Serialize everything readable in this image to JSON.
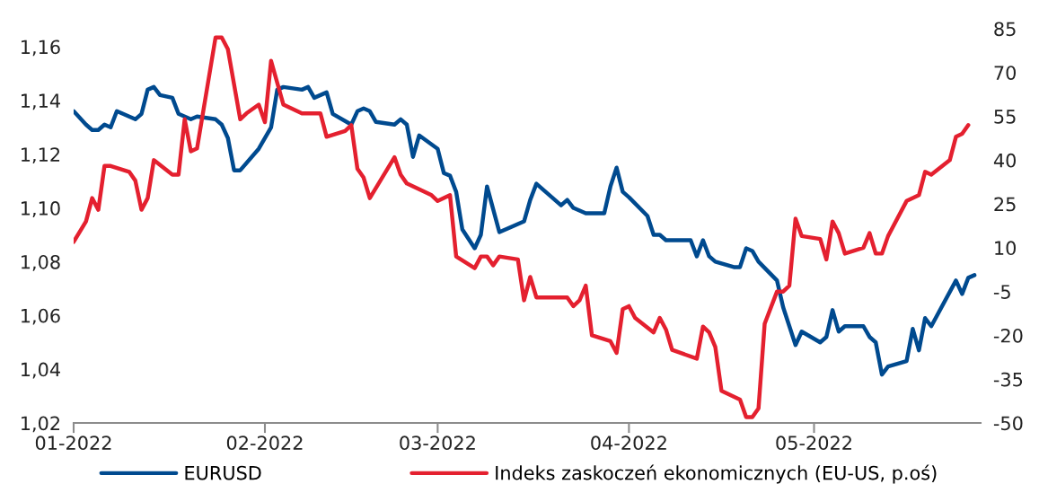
{
  "chart_data": {
    "type": "line",
    "xlim": [
      "2022-01-01",
      "2022-05-28"
    ],
    "xticks": [
      {
        "value": "2022-01-01",
        "label": "01-2022"
      },
      {
        "value": "2022-02-01",
        "label": "02-2022"
      },
      {
        "value": "2022-03-01",
        "label": "03-2022"
      },
      {
        "value": "2022-04-01",
        "label": "04-2022"
      },
      {
        "value": "2022-05-01",
        "label": "05-2022"
      }
    ],
    "ylim": [
      1.02,
      1.16
    ],
    "yticks": [
      {
        "value": 1.02,
        "label": "1,02"
      },
      {
        "value": 1.04,
        "label": "1,04"
      },
      {
        "value": 1.06,
        "label": "1,06"
      },
      {
        "value": 1.08,
        "label": "1,08"
      },
      {
        "value": 1.1,
        "label": "1,10"
      },
      {
        "value": 1.12,
        "label": "1,12"
      },
      {
        "value": 1.14,
        "label": "1,14"
      },
      {
        "value": 1.16,
        "label": "1,16"
      }
    ],
    "y2lim": [
      -50,
      85
    ],
    "y2ticks": [
      -50,
      -35,
      -20,
      -5,
      10,
      25,
      40,
      55,
      70,
      85
    ],
    "grid": false,
    "legend": "bottom",
    "marker": "none",
    "line_style": "solid",
    "series": [
      {
        "name": "EURUSD",
        "color": "#004a8f",
        "x": [
          "2022-01-01",
          "2022-01-03",
          "2022-01-04",
          "2022-01-05",
          "2022-01-06",
          "2022-01-07",
          "2022-01-08",
          "2022-01-11",
          "2022-01-12",
          "2022-01-13",
          "2022-01-14",
          "2022-01-15",
          "2022-01-17",
          "2022-01-18",
          "2022-01-19",
          "2022-01-20",
          "2022-01-21",
          "2022-01-24",
          "2022-01-25",
          "2022-01-26",
          "2022-01-27",
          "2022-01-28",
          "2022-01-31",
          "2022-02-02",
          "2022-02-03",
          "2022-02-04",
          "2022-02-07",
          "2022-02-08",
          "2022-02-09",
          "2022-02-11",
          "2022-02-12",
          "2022-02-15",
          "2022-02-16",
          "2022-02-17",
          "2022-02-18",
          "2022-02-19",
          "2022-02-22",
          "2022-02-23",
          "2022-02-24",
          "2022-02-25",
          "2022-02-26",
          "2022-03-01",
          "2022-03-02",
          "2022-03-03",
          "2022-03-04",
          "2022-03-05",
          "2022-03-07",
          "2022-03-08",
          "2022-03-09",
          "2022-03-11",
          "2022-03-15",
          "2022-03-16",
          "2022-03-17",
          "2022-03-19",
          "2022-03-21",
          "2022-03-22",
          "2022-03-23",
          "2022-03-24",
          "2022-03-25",
          "2022-03-28",
          "2022-03-29",
          "2022-03-30",
          "2022-03-31",
          "2022-04-01",
          "2022-04-04",
          "2022-04-05",
          "2022-04-06",
          "2022-04-07",
          "2022-04-11",
          "2022-04-12",
          "2022-04-13",
          "2022-04-14",
          "2022-04-15",
          "2022-04-18",
          "2022-04-19",
          "2022-04-20",
          "2022-04-21",
          "2022-04-22",
          "2022-04-25",
          "2022-04-26",
          "2022-04-27",
          "2022-04-28",
          "2022-04-29",
          "2022-05-02",
          "2022-05-03",
          "2022-05-04",
          "2022-05-05",
          "2022-05-06",
          "2022-05-09",
          "2022-05-10",
          "2022-05-11",
          "2022-05-12",
          "2022-05-13",
          "2022-05-16",
          "2022-05-17",
          "2022-05-18",
          "2022-05-19",
          "2022-05-20",
          "2022-05-24",
          "2022-05-25",
          "2022-05-26",
          "2022-05-27"
        ],
        "values": [
          1.136,
          1.131,
          1.129,
          1.129,
          1.131,
          1.13,
          1.136,
          1.133,
          1.135,
          1.144,
          1.145,
          1.142,
          1.141,
          1.135,
          1.134,
          1.133,
          1.134,
          1.133,
          1.131,
          1.126,
          1.114,
          1.114,
          1.122,
          1.13,
          1.144,
          1.145,
          1.144,
          1.145,
          1.141,
          1.143,
          1.135,
          1.131,
          1.136,
          1.137,
          1.136,
          1.132,
          1.131,
          1.133,
          1.131,
          1.119,
          1.127,
          1.122,
          1.113,
          1.112,
          1.106,
          1.092,
          1.085,
          1.09,
          1.108,
          1.091,
          1.095,
          1.103,
          1.109,
          1.105,
          1.101,
          1.103,
          1.1,
          1.099,
          1.098,
          1.098,
          1.108,
          1.115,
          1.106,
          1.104,
          1.097,
          1.09,
          1.09,
          1.088,
          1.088,
          1.082,
          1.088,
          1.082,
          1.08,
          1.078,
          1.078,
          1.085,
          1.084,
          1.08,
          1.073,
          1.063,
          1.056,
          1.049,
          1.054,
          1.05,
          1.052,
          1.062,
          1.054,
          1.056,
          1.056,
          1.052,
          1.05,
          1.038,
          1.041,
          1.043,
          1.055,
          1.047,
          1.059,
          1.056,
          1.073,
          1.068,
          1.074,
          1.075
        ]
      },
      {
        "name": "Indeks zaskoczeń ekonomicznych (EU-US, p.oś)",
        "color": "#e4202f",
        "axis": "y2",
        "x": [
          "2022-01-01",
          "2022-01-03",
          "2022-01-04",
          "2022-01-05",
          "2022-01-06",
          "2022-01-07",
          "2022-01-10",
          "2022-01-11",
          "2022-01-12",
          "2022-01-13",
          "2022-01-14",
          "2022-01-17",
          "2022-01-18",
          "2022-01-19",
          "2022-01-20",
          "2022-01-21",
          "2022-01-24",
          "2022-01-25",
          "2022-01-26",
          "2022-01-28",
          "2022-01-29",
          "2022-01-31",
          "2022-02-01",
          "2022-02-02",
          "2022-02-04",
          "2022-02-07",
          "2022-02-08",
          "2022-02-10",
          "2022-02-11",
          "2022-02-14",
          "2022-02-15",
          "2022-02-16",
          "2022-02-17",
          "2022-02-18",
          "2022-02-22",
          "2022-02-23",
          "2022-02-24",
          "2022-02-25",
          "2022-02-28",
          "2022-03-01",
          "2022-03-02",
          "2022-03-03",
          "2022-03-04",
          "2022-03-07",
          "2022-03-08",
          "2022-03-09",
          "2022-03-10",
          "2022-03-11",
          "2022-03-14",
          "2022-03-15",
          "2022-03-16",
          "2022-03-17",
          "2022-03-18",
          "2022-03-21",
          "2022-03-22",
          "2022-03-23",
          "2022-03-24",
          "2022-03-25",
          "2022-03-26",
          "2022-03-29",
          "2022-03-30",
          "2022-03-31",
          "2022-04-01",
          "2022-04-02",
          "2022-04-05",
          "2022-04-06",
          "2022-04-07",
          "2022-04-08",
          "2022-04-12",
          "2022-04-13",
          "2022-04-14",
          "2022-04-15",
          "2022-04-16",
          "2022-04-18",
          "2022-04-19",
          "2022-04-20",
          "2022-04-21",
          "2022-04-22",
          "2022-04-23",
          "2022-04-25",
          "2022-04-26",
          "2022-04-27",
          "2022-04-28",
          "2022-04-29",
          "2022-05-02",
          "2022-05-03",
          "2022-05-04",
          "2022-05-05",
          "2022-05-06",
          "2022-05-09",
          "2022-05-10",
          "2022-05-11",
          "2022-05-12",
          "2022-05-13",
          "2022-05-16",
          "2022-05-17",
          "2022-05-18",
          "2022-05-19",
          "2022-05-20",
          "2022-05-23",
          "2022-05-24",
          "2022-05-25",
          "2022-05-26"
        ],
        "values": [
          12,
          19,
          27,
          23,
          38,
          38,
          36,
          33,
          23,
          27,
          40,
          35,
          35,
          54,
          43,
          44,
          82,
          82,
          78,
          54,
          56,
          59,
          53,
          74,
          59,
          56,
          56,
          56,
          48,
          50,
          52,
          37,
          34,
          27,
          41,
          35,
          32,
          31,
          28,
          26,
          27,
          28,
          7,
          3,
          7,
          7,
          4,
          7,
          6,
          -8,
          0,
          -7,
          -7,
          -7,
          -7,
          -10,
          -8,
          -3,
          -20,
          -22,
          -26,
          -11,
          -10,
          -14,
          -19,
          -14,
          -18,
          -25,
          -28,
          -17,
          -19,
          -24,
          -39,
          -41,
          -42,
          -48,
          -48,
          -45,
          -16,
          -5,
          -5,
          -3,
          20,
          14,
          13,
          6,
          19,
          15,
          8,
          10,
          15,
          8,
          8,
          14,
          26,
          27,
          28,
          36,
          35,
          40,
          48,
          49,
          52
        ]
      }
    ]
  }
}
